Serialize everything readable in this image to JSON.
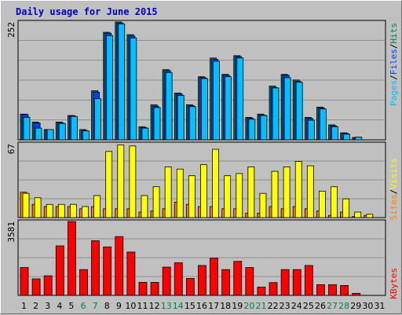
{
  "title": "Daily usage for June 2015",
  "colors": {
    "background": "#c0c0c0",
    "plot_bg": "#c0c0c0",
    "grid": "#8f8f8f",
    "hits": "#00805c",
    "files": "#0040ff",
    "pages": "#00c0ff",
    "visits": "#ff8000",
    "sites": "#ff8000",
    "visits_bar": "#ff8000",
    "sites_bar": "#ffff00",
    "kbytes": "#ff0000",
    "title": "#0000c0",
    "weekend_label": "#00805c",
    "weekday_label": "#000000"
  },
  "chart_data": [
    {
      "type": "bar",
      "name": "hits-files-pages",
      "ymax_label": "252",
      "ymax": 252,
      "x": [
        1,
        2,
        3,
        4,
        5,
        6,
        7,
        8,
        9,
        10,
        11,
        12,
        13,
        14,
        15,
        16,
        17,
        18,
        19,
        20,
        21,
        22,
        23,
        24,
        25,
        26,
        27,
        28,
        29,
        30,
        31
      ],
      "series": [
        {
          "name": "Hits",
          "values": [
            55,
            38,
            22,
            38,
            52,
            22,
            105,
            230,
            252,
            225,
            28,
            75,
            150,
            100,
            75,
            135,
            175,
            140,
            180,
            48,
            55,
            115,
            140,
            128,
            48,
            70,
            32,
            15,
            5,
            0,
            0
          ]
        },
        {
          "name": "Files",
          "values": [
            54,
            36,
            21,
            36,
            51,
            20,
            102,
            228,
            250,
            222,
            26,
            72,
            148,
            98,
            73,
            133,
            172,
            138,
            178,
            46,
            53,
            112,
            138,
            125,
            46,
            68,
            30,
            14,
            4,
            0,
            0
          ]
        },
        {
          "name": "Pages",
          "values": [
            48,
            25,
            22,
            35,
            50,
            19,
            88,
            223,
            248,
            218,
            25,
            69,
            144,
            95,
            71,
            131,
            168,
            135,
            175,
            44,
            52,
            111,
            133,
            123,
            42,
            66,
            28,
            12,
            6,
            0,
            0
          ]
        }
      ],
      "legend": [
        "Hits",
        "Files",
        "Pages"
      ]
    },
    {
      "type": "bar",
      "name": "visits-sites",
      "ymax_label": "67",
      "ymax": 67,
      "x": [
        1,
        2,
        3,
        4,
        5,
        6,
        7,
        8,
        9,
        10,
        11,
        12,
        13,
        14,
        15,
        16,
        17,
        18,
        19,
        20,
        21,
        22,
        23,
        24,
        25,
        26,
        27,
        28,
        29,
        30,
        31
      ],
      "series": [
        {
          "name": "Visits",
          "values": [
            23,
            12,
            10,
            10,
            10,
            8,
            10,
            8,
            8,
            8,
            5,
            6,
            8,
            14,
            12,
            10,
            10,
            8,
            8,
            4,
            4,
            10,
            8,
            10,
            8,
            6,
            2,
            5,
            1,
            2,
            0
          ]
        },
        {
          "name": "Sites",
          "values": [
            22,
            18,
            12,
            12,
            12,
            10,
            20,
            60,
            66,
            65,
            20,
            28,
            46,
            44,
            38,
            48,
            62,
            38,
            40,
            46,
            22,
            42,
            46,
            51,
            47,
            24,
            28,
            17,
            5,
            3,
            0
          ]
        }
      ],
      "legend": [
        "Visits",
        "Sites"
      ]
    },
    {
      "type": "bar",
      "name": "kbytes",
      "ymax_label": "3581",
      "ymax": 3581,
      "x": [
        1,
        2,
        3,
        4,
        5,
        6,
        7,
        8,
        9,
        10,
        11,
        12,
        13,
        14,
        15,
        16,
        17,
        18,
        19,
        20,
        21,
        22,
        23,
        24,
        25,
        26,
        27,
        28,
        29,
        30,
        31
      ],
      "series": [
        {
          "name": "KBytes",
          "values": [
            1350,
            800,
            950,
            2400,
            3581,
            1250,
            2650,
            2350,
            2850,
            2100,
            630,
            630,
            1370,
            1580,
            820,
            1450,
            1800,
            1250,
            1650,
            1350,
            400,
            620,
            1250,
            1250,
            1450,
            520,
            520,
            480,
            100,
            0,
            0
          ]
        }
      ],
      "legend": [
        "KBytes"
      ]
    }
  ],
  "x_labels": [
    "1",
    "2",
    "3",
    "4",
    "5",
    "6",
    "7",
    "8",
    "9",
    "10",
    "11",
    "12",
    "13",
    "14",
    "15",
    "16",
    "17",
    "18",
    "19",
    "20",
    "21",
    "22",
    "23",
    "24",
    "25",
    "26",
    "27",
    "28",
    "29",
    "30",
    "31"
  ],
  "weekend_days": [
    6,
    7,
    13,
    14,
    20,
    21,
    27,
    28
  ],
  "right_labels": {
    "top": [
      "Pages",
      "Files",
      "Hits"
    ],
    "middle": [
      "Sites",
      "Visits"
    ],
    "bottom": [
      "KBytes"
    ],
    "sep": "/"
  }
}
